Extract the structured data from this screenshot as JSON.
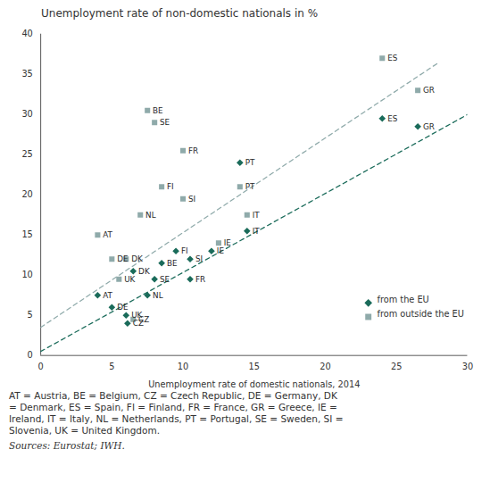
{
  "chart_data": {
    "type": "scatter",
    "title": "Unemployment rate of non-domestic nationals in %",
    "xlabel": "Unemployment rate of domestic nationals, 2014",
    "xlim": [
      0,
      30
    ],
    "ylim": [
      0,
      40
    ],
    "xticks": [
      0,
      5,
      10,
      15,
      20,
      25,
      30
    ],
    "yticks": [
      0,
      5,
      10,
      15,
      20,
      25,
      30,
      35,
      40
    ],
    "legend": "lower right",
    "series": [
      {
        "name": "from the EU",
        "color": "#1a6b5a",
        "marker": "diamond",
        "labels": [
          "AT",
          "BE",
          "CZ",
          "DE",
          "DK",
          "ES",
          "FI",
          "FR",
          "GR",
          "IE",
          "IT",
          "NL",
          "PT",
          "SE",
          "SI",
          "UK"
        ],
        "x": [
          4.0,
          8.5,
          6.1,
          5.0,
          6.5,
          24.0,
          9.5,
          10.5,
          26.5,
          12.0,
          14.5,
          7.5,
          14.0,
          8.0,
          10.5,
          6.0
        ],
        "values": [
          7.5,
          11.5,
          4.0,
          6.0,
          10.5,
          29.5,
          13.0,
          9.5,
          28.5,
          13.0,
          15.5,
          7.5,
          24.0,
          9.5,
          12.0,
          5.0
        ],
        "trend": {
          "x": [
            0,
            30
          ],
          "values": [
            0.5,
            30.0
          ],
          "line_style": "dashed"
        }
      },
      {
        "name": "from outside the EU",
        "color": "#8faaaa",
        "marker": "square",
        "labels": [
          "AT",
          "BE",
          "CZ",
          "DE",
          "DK",
          "ES",
          "FI",
          "FR",
          "GR",
          "IE",
          "IT",
          "NL",
          "PT",
          "SE",
          "SI",
          "UK"
        ],
        "x": [
          4.0,
          7.5,
          6.5,
          5.0,
          6.0,
          24.0,
          8.5,
          10.0,
          26.5,
          12.5,
          14.5,
          7.0,
          14.0,
          8.0,
          10.0,
          5.5
        ],
        "values": [
          15.0,
          30.5,
          4.5,
          12.0,
          12.0,
          37.0,
          21.0,
          25.5,
          33.0,
          14.0,
          17.5,
          17.5,
          21.0,
          29.0,
          19.5,
          9.5
        ],
        "trend": {
          "x": [
            0,
            28
          ],
          "values": [
            3.5,
            36.5
          ],
          "line_style": "dashed"
        }
      }
    ],
    "footnotes": [
      "AT = Austria, BE = Belgium, CZ = Czech Republic, DE = Germany, DK",
      "= Denmark, ES = Spain, FI = Finland, FR = France, GR = Greece, IE =",
      "Ireland, IT = Italy, NL = Netherlands, PT = Portugal, SE = Sweden, SI =",
      "Slovenia, UK = United Kingdom."
    ],
    "source": "Sources:  Eurostat; IWH."
  }
}
